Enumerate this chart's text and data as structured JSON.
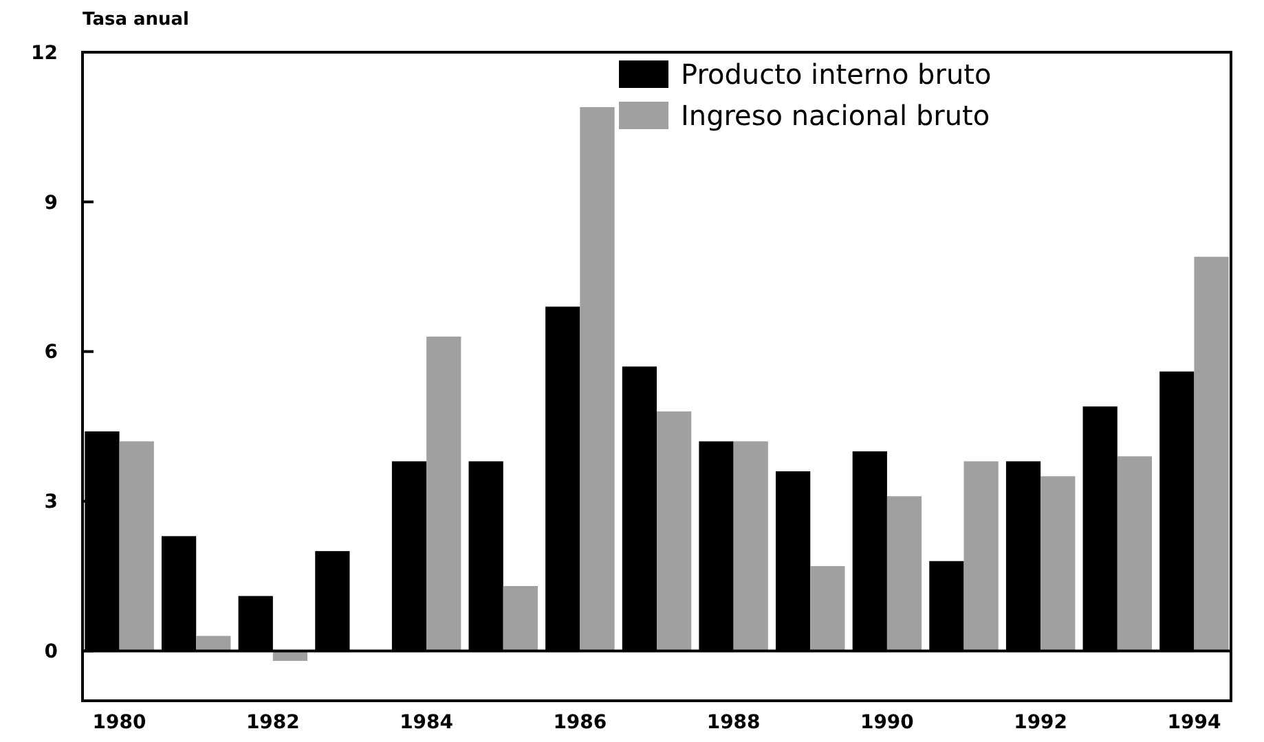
{
  "chart_data": {
    "type": "bar",
    "ylabel": "Tasa anual",
    "categories": [
      "1980",
      null,
      "1982",
      null,
      "1984",
      null,
      "1986",
      null,
      "1988",
      null,
      "1990",
      null,
      "1992",
      null,
      "1994"
    ],
    "series": [
      {
        "name": "Producto interno bruto",
        "color": "#000000",
        "values": [
          4.4,
          2.3,
          1.1,
          2.0,
          3.8,
          3.8,
          6.9,
          5.7,
          4.2,
          3.6,
          4.0,
          1.8,
          3.8,
          4.9,
          5.6
        ]
      },
      {
        "name": "Ingreso nacional bruto",
        "color": "#a0a0a0",
        "values": [
          4.2,
          0.3,
          -0.2,
          null,
          6.3,
          1.3,
          10.9,
          4.8,
          4.2,
          1.7,
          3.1,
          3.8,
          3.5,
          3.9,
          7.9
        ]
      }
    ],
    "ylim": [
      -1,
      12
    ],
    "yticks": [
      0,
      3,
      6,
      9,
      12
    ],
    "legend": "top right"
  }
}
